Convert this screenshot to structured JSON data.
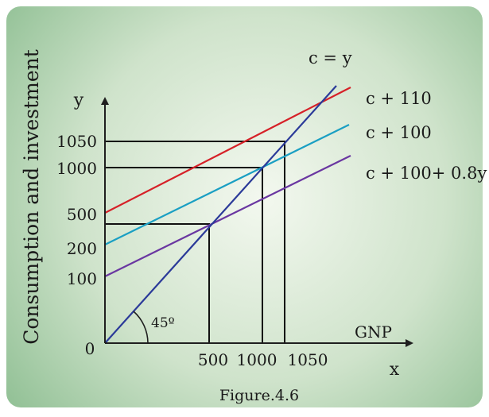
{
  "colors": {
    "background_center": "#f3f8ef",
    "background_edge": "#8fbf93",
    "axis": "#1f1f1f",
    "guide": "#111111",
    "line_45deg": "#2b3a99",
    "line_c110": "#d62128",
    "line_c100": "#1a9fc3",
    "line_c100_08y": "#6a37a1"
  },
  "labels": {
    "y_axis_title": "Consumption and investment",
    "y_axis_var": "y",
    "x_axis_var": "x",
    "x_axis_title": "GNP",
    "origin": "0",
    "angle": "45º",
    "caption": "Figure.4.6"
  },
  "legend": {
    "line_45deg": "c = y",
    "line_c110": "c + 110",
    "line_c100": "c + 100",
    "line_c100_08y": "c + 100+ 0.8y"
  },
  "y_ticks": [
    "1050",
    "1000",
    "500",
    "200",
    "100"
  ],
  "x_ticks": [
    "500",
    "1000",
    "1050"
  ]
}
